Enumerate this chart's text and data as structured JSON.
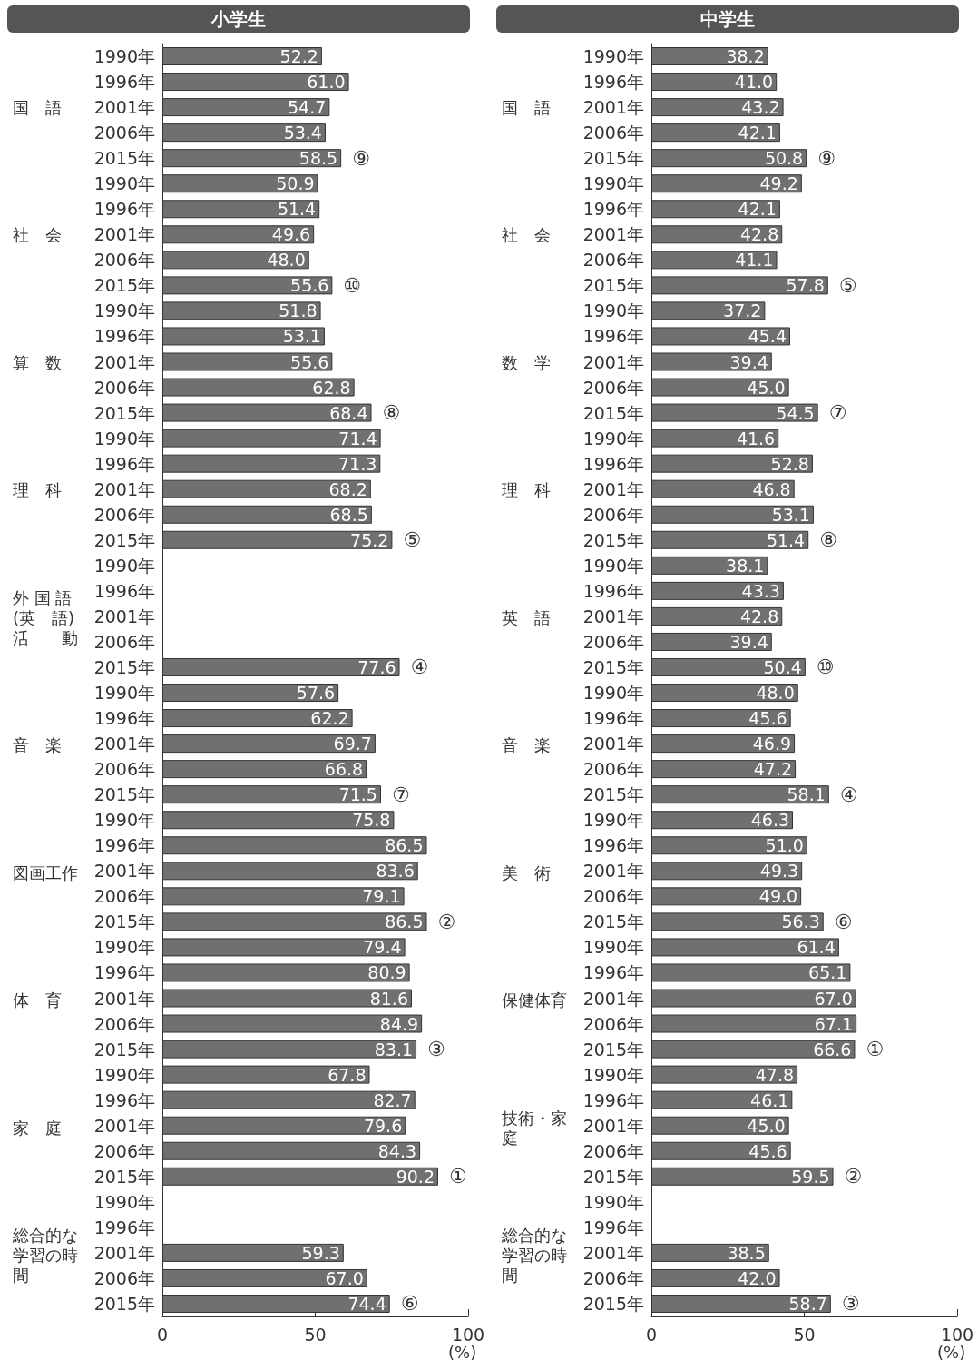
{
  "chart_data": [
    {
      "type": "bar",
      "orientation": "horizontal",
      "title": "小学生",
      "xlabel": "(%)",
      "color": "#707070",
      "xlim": [
        0,
        100
      ],
      "xticks": [
        0,
        50,
        100
      ],
      "categories": [
        "1990年",
        "1996年",
        "2001年",
        "2006年",
        "2015年",
        "1990年",
        "1996年",
        "2001年",
        "2006年",
        "2015年",
        "1990年",
        "1996年",
        "2001年",
        "2006年",
        "2015年",
        "1990年",
        "1996年",
        "2001年",
        "2006年",
        "2015年",
        "1990年",
        "1996年",
        "2001年",
        "2006年",
        "2015年",
        "1990年",
        "1996年",
        "2001年",
        "2006年",
        "2015年",
        "1990年",
        "1996年",
        "2001年",
        "2006年",
        "2015年",
        "1990年",
        "1996年",
        "2001年",
        "2006年",
        "2015年",
        "1990年",
        "1996年",
        "2001年",
        "2006年",
        "2015年",
        "1990年",
        "1996年",
        "2001年",
        "2006年",
        "2015年"
      ],
      "values": [
        52.2,
        61.0,
        54.7,
        53.4,
        58.5,
        50.9,
        51.4,
        49.6,
        48.0,
        55.6,
        51.8,
        53.1,
        55.6,
        62.8,
        68.4,
        71.4,
        71.3,
        68.2,
        68.5,
        75.2,
        null,
        null,
        null,
        null,
        77.6,
        57.6,
        62.2,
        69.7,
        66.8,
        71.5,
        75.8,
        86.5,
        83.6,
        79.1,
        86.5,
        79.4,
        80.9,
        81.6,
        84.9,
        83.1,
        67.8,
        82.7,
        79.6,
        84.3,
        90.2,
        null,
        null,
        59.3,
        67.0,
        74.4
      ],
      "value_labels": [
        "52.2",
        "61.0",
        "54.7",
        "53.4",
        "58.5",
        "50.9",
        "51.4",
        "49.6",
        "48.0",
        "55.6",
        "51.8",
        "53.1",
        "55.6",
        "62.8",
        "68.4",
        "71.4",
        "71.3",
        "68.2",
        "68.5",
        "75.2",
        null,
        null,
        null,
        null,
        "77.6",
        "57.6",
        "62.2",
        "69.7",
        "66.8",
        "71.5",
        "75.8",
        "86.5",
        "83.6",
        "79.1",
        "86.5",
        "79.4",
        "80.9",
        "81.6",
        "84.9",
        "83.1",
        "67.8",
        "82.7",
        "79.6",
        "84.3",
        "90.2",
        null,
        null,
        "59.3",
        "67.0",
        "74.4"
      ],
      "annotations": [
        "国　語",
        "社　会",
        "算　数",
        "理　科",
        "外 国 語\n(英　語)\n活　　動",
        "音　楽",
        "図画工作",
        "体　育",
        "家　庭",
        "総合的な学習の時間",
        "⑨",
        "⑩",
        "⑧",
        "⑤",
        "④",
        "⑦",
        "②",
        "③",
        "①",
        "⑥"
      ]
    },
    {
      "type": "bar",
      "orientation": "horizontal",
      "title": "中学生",
      "xlabel": "(%)",
      "color": "#707070",
      "xlim": [
        0,
        100
      ],
      "xticks": [
        0,
        50,
        100
      ],
      "categories": [
        "1990年",
        "1996年",
        "2001年",
        "2006年",
        "2015年",
        "1990年",
        "1996年",
        "2001年",
        "2006年",
        "2015年",
        "1990年",
        "1996年",
        "2001年",
        "2006年",
        "2015年",
        "1990年",
        "1996年",
        "2001年",
        "2006年",
        "2015年",
        "1990年",
        "1996年",
        "2001年",
        "2006年",
        "2015年",
        "1990年",
        "1996年",
        "2001年",
        "2006年",
        "2015年",
        "1990年",
        "1996年",
        "2001年",
        "2006年",
        "2015年",
        "1990年",
        "1996年",
        "2001年",
        "2006年",
        "2015年",
        "1990年",
        "1996年",
        "2001年",
        "2006年",
        "2015年",
        "1990年",
        "1996年",
        "2001年",
        "2006年",
        "2015年"
      ],
      "values": [
        38.2,
        41.0,
        43.2,
        42.1,
        50.8,
        49.2,
        42.1,
        42.8,
        41.1,
        57.8,
        37.2,
        45.4,
        39.4,
        45.0,
        54.5,
        41.6,
        52.8,
        46.8,
        53.1,
        51.4,
        38.1,
        43.3,
        42.8,
        39.4,
        50.4,
        48.0,
        45.6,
        46.9,
        47.2,
        58.1,
        46.3,
        51.0,
        49.3,
        49.0,
        56.3,
        61.4,
        65.1,
        67.0,
        67.1,
        66.6,
        47.8,
        46.1,
        45.0,
        45.6,
        59.5,
        null,
        null,
        38.5,
        42.0,
        58.7
      ],
      "value_labels": [
        "38.2",
        "41.0",
        "43.2",
        "42.1",
        "50.8",
        "49.2",
        "42.1",
        "42.8",
        "41.1",
        "57.8",
        "37.2",
        "45.4",
        "39.4",
        "45.0",
        "54.5",
        "41.6",
        "52.8",
        "46.8",
        "53.1",
        "51.4",
        "38.1",
        "43.3",
        "42.8",
        "39.4",
        "50.4",
        "48.0",
        "45.6",
        "46.9",
        "47.2",
        "58.1",
        "46.3",
        "51.0",
        "49.3",
        "49.0",
        "56.3",
        "61.4",
        "65.1",
        "67.0",
        "67.1",
        "66.6",
        "47.8",
        "46.1",
        "45.0",
        "45.6",
        "59.5",
        null,
        null,
        "38.5",
        "42.0",
        "58.7"
      ],
      "annotations": [
        "国　語",
        "社　会",
        "数　学",
        "理　科",
        "英　語",
        "音　楽",
        "美　術",
        "保健体育",
        "技術・家庭",
        "総合的な学習の時間",
        "⑨",
        "⑤",
        "⑦",
        "⑧",
        "⑩",
        "④",
        "⑥",
        "①",
        "②",
        "③"
      ]
    }
  ]
}
